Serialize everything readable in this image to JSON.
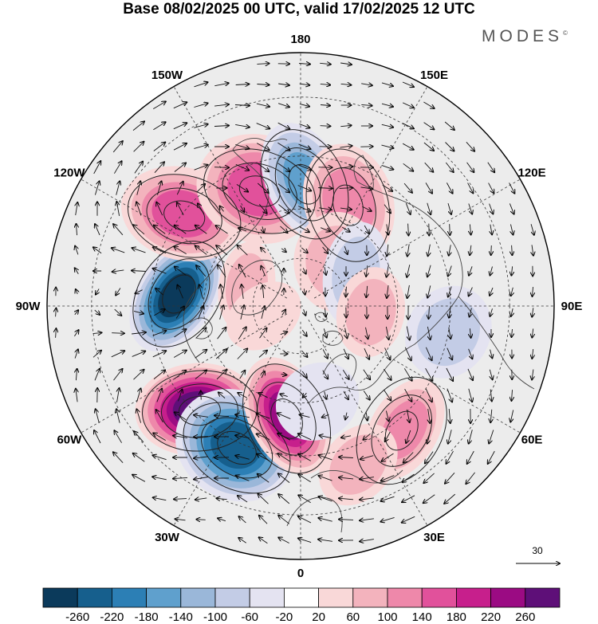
{
  "header": {
    "title": "Base 08/02/2025 00 UTC, valid 17/02/2025 12 UTC",
    "brand": "MODES",
    "brand_mark": "©"
  },
  "map": {
    "projection": "north-polar-stereographic",
    "longitude_labels": [
      {
        "text": "180",
        "lon": 180
      },
      {
        "text": "150E",
        "lon": 150
      },
      {
        "text": "120E",
        "lon": 120
      },
      {
        "text": "90E",
        "lon": 90
      },
      {
        "text": "60E",
        "lon": 60
      },
      {
        "text": "30E",
        "lon": 30
      },
      {
        "text": "0",
        "lon": 0
      },
      {
        "text": "30W",
        "lon": -30
      },
      {
        "text": "60W",
        "lon": -60
      },
      {
        "text": "90W",
        "lon": -90
      },
      {
        "text": "120W",
        "lon": -120
      },
      {
        "text": "150W",
        "lon": -150
      }
    ],
    "anomaly_centers": [
      {
        "lon": -95,
        "lat": 52,
        "value": -280
      },
      {
        "lon": -45,
        "lat": 46,
        "value": 260
      },
      {
        "lon": -25,
        "lat": 44,
        "value": -240
      },
      {
        "lon": -7,
        "lat": 56,
        "value": 230
      },
      {
        "lon": -128,
        "lat": 45,
        "value": 160
      },
      {
        "lon": -160,
        "lat": 52,
        "value": 150
      },
      {
        "lon": 178,
        "lat": 52,
        "value": -170
      },
      {
        "lon": 155,
        "lat": 55,
        "value": 120
      },
      {
        "lon": 140,
        "lat": 72,
        "value": 80
      },
      {
        "lon": 120,
        "lat": 70,
        "value": -90
      },
      {
        "lon": 85,
        "lat": 68,
        "value": 60
      },
      {
        "lon": 80,
        "lat": 45,
        "value": -70
      },
      {
        "lon": 40,
        "lat": 42,
        "value": 100
      },
      {
        "lon": 20,
        "lat": 40,
        "value": 60
      },
      {
        "lon": 10,
        "lat": 60,
        "value": -50
      },
      {
        "lon": -110,
        "lat": 72,
        "value": 60
      },
      {
        "lon": -75,
        "lat": 78,
        "value": 40
      }
    ],
    "vector_reference": {
      "label": "30"
    }
  },
  "colorbar": {
    "colors": [
      "#0b3a5b",
      "#165f8d",
      "#2c7fb5",
      "#5fa0cd",
      "#9ab7d9",
      "#c3cce6",
      "#e4e3f1",
      "#ffffff",
      "#f9d8d8",
      "#f3b3bd",
      "#ee88aa",
      "#e1519b",
      "#c71f8c",
      "#9b0b83",
      "#5e0f78"
    ],
    "tick_labels": [
      "-260",
      "-220",
      "-180",
      "-140",
      "-100",
      "-60",
      "-20",
      "20",
      "60",
      "100",
      "140",
      "180",
      "220",
      "260"
    ]
  }
}
